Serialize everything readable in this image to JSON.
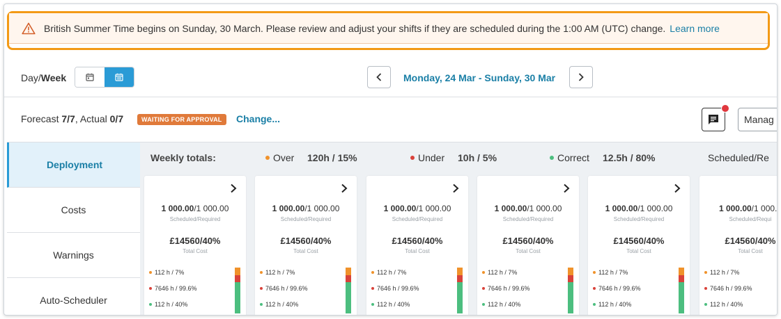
{
  "banner": {
    "message": "British Summer Time begins on Sunday, 30 March. Please review and adjust your shifts if they are scheduled during the 1:00 AM (UTC) change.",
    "link": "Learn more"
  },
  "toolbar": {
    "day_label": "Day/",
    "week_label": "Week",
    "date_range": "Monday, 24 Mar - Sunday, 30 Mar"
  },
  "forecast": {
    "forecast_label": "Forecast",
    "forecast_value": "7/7",
    "actual_label": ", Actual",
    "actual_value": "0/7",
    "status": "WAITING FOR APPROVAL",
    "change_link": "Change...",
    "manage_label": "Manag"
  },
  "sidebar": {
    "items": [
      {
        "label": "Deployment",
        "active": true
      },
      {
        "label": "Costs",
        "active": false
      },
      {
        "label": "Warnings",
        "active": false
      },
      {
        "label": "Auto-Scheduler",
        "active": false
      }
    ]
  },
  "totals": {
    "title": "Weekly totals:",
    "over_label": "Over",
    "over_value": "120h / 15%",
    "under_label": "Under",
    "under_value": "10h / 5%",
    "correct_label": "Correct",
    "correct_value": "12.5h / 80%",
    "scheduled_label": "Scheduled/Re"
  },
  "colors": {
    "over": "#f0922b",
    "under": "#d9423a",
    "correct": "#4cbe7f",
    "accent": "#1a7fa6",
    "banner_border": "#f39a16"
  },
  "cards": [
    {
      "scheduled": "1 000.00",
      "required": "/1 000.00",
      "sched_sub": "Scheduled/Required",
      "cost": "£14560/40%",
      "cost_sub": "Total Cost",
      "over": "112 h / 7%",
      "under": "7646 h / 99.6%",
      "correct": "112 h / 40%"
    },
    {
      "scheduled": "1 000.00",
      "required": "/1 000.00",
      "sched_sub": "Scheduled/Required",
      "cost": "£14560/40%",
      "cost_sub": "Total Cost",
      "over": "112 h / 7%",
      "under": "7646 h / 99.6%",
      "correct": "112 h / 40%"
    },
    {
      "scheduled": "1 000.00",
      "required": "/1 000.00",
      "sched_sub": "Scheduled/Required",
      "cost": "£14560/40%",
      "cost_sub": "Total Cost",
      "over": "112 h / 7%",
      "under": "7646 h / 99.6%",
      "correct": "112 h / 40%"
    },
    {
      "scheduled": "1 000.00",
      "required": "/1 000.00",
      "sched_sub": "Scheduled/Required",
      "cost": "£14560/40%",
      "cost_sub": "Total Cost",
      "over": "112 h / 7%",
      "under": "7646 h / 99.6%",
      "correct": "112 h / 40%"
    },
    {
      "scheduled": "1 000.00",
      "required": "/1 000.00",
      "sched_sub": "Scheduled/Required",
      "cost": "£14560/40%",
      "cost_sub": "Total Cost",
      "over": "112 h / 7%",
      "under": "7646 h / 99.6%",
      "correct": "112 h / 40%"
    },
    {
      "scheduled": "1 000.00",
      "required": "/1 000.0",
      "sched_sub": "Scheduled/Requi",
      "cost": "£14560/40%",
      "cost_sub": "Total Cost",
      "over": "112 h / 7%",
      "under": "7646 h / 99.6%",
      "correct": "112 h / 40%"
    }
  ]
}
